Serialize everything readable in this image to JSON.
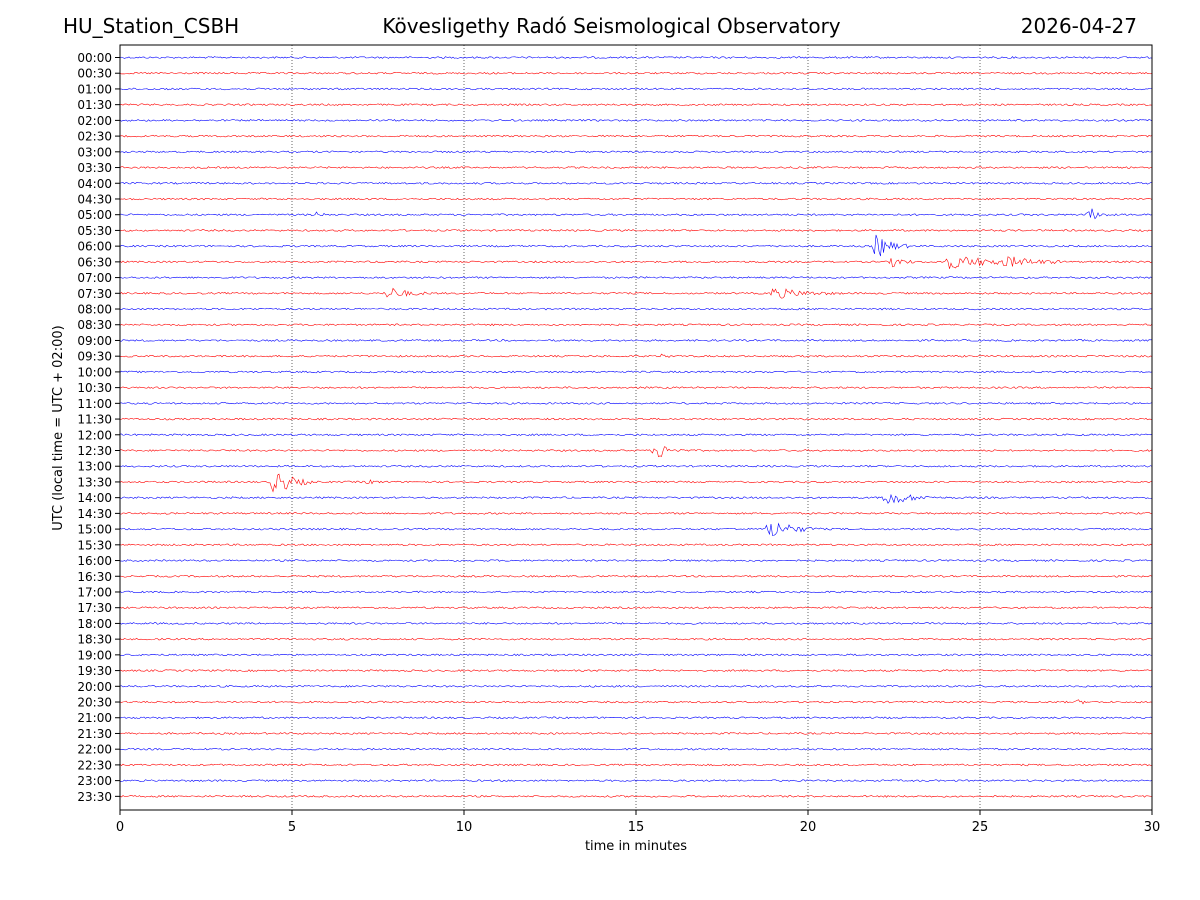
{
  "header": {
    "station": "HU_Station_CSBH",
    "title": "Kövesligethy Radó Seismological Observatory",
    "date": "2026-04-27"
  },
  "chart_data": {
    "type": "line",
    "title": "Kövesligethy Radó Seismological Observatory",
    "xlabel": "time in minutes",
    "ylabel": "UTC (local time = UTC + 02:00)",
    "xlim": [
      0,
      30
    ],
    "xticks": [
      0,
      5,
      10,
      15,
      20,
      25,
      30
    ],
    "grid": "vertical dotted at x ticks",
    "colors": [
      "#0000ff",
      "#ff0000"
    ],
    "rows": [
      "00:00",
      "00:30",
      "01:00",
      "01:30",
      "02:00",
      "02:30",
      "03:00",
      "03:30",
      "04:00",
      "04:30",
      "05:00",
      "05:30",
      "06:00",
      "06:30",
      "07:00",
      "07:30",
      "08:00",
      "08:30",
      "09:00",
      "09:30",
      "10:00",
      "10:30",
      "11:00",
      "11:30",
      "12:00",
      "12:30",
      "13:00",
      "13:30",
      "14:00",
      "14:30",
      "15:00",
      "15:30",
      "16:00",
      "16:30",
      "17:00",
      "17:30",
      "18:00",
      "18:30",
      "19:00",
      "19:30",
      "20:00",
      "20:30",
      "21:00",
      "21:30",
      "22:00",
      "22:30",
      "23:00",
      "23:30"
    ],
    "events": [
      {
        "row": "05:00",
        "minute": 28.2,
        "amplitude": 0.5,
        "duration": 0.6
      },
      {
        "row": "05:00",
        "minute": 5.7,
        "amplitude": 0.15,
        "duration": 0.5
      },
      {
        "row": "06:00",
        "minute": 22.0,
        "amplitude": 0.9,
        "duration": 1.0
      },
      {
        "row": "06:30",
        "minute": 22.5,
        "amplitude": 0.45,
        "duration": 0.6
      },
      {
        "row": "06:30",
        "minute": 24.0,
        "amplitude": 0.5,
        "duration": 3.5
      },
      {
        "row": "06:30",
        "minute": 25.8,
        "amplitude": 0.3,
        "duration": 1.5
      },
      {
        "row": "07:30",
        "minute": 7.8,
        "amplitude": 0.45,
        "duration": 1.3
      },
      {
        "row": "07:30",
        "minute": 19.0,
        "amplitude": 0.4,
        "duration": 2.0
      },
      {
        "row": "09:30",
        "minute": 15.8,
        "amplitude": 0.15,
        "duration": 0.3
      },
      {
        "row": "12:30",
        "minute": 15.6,
        "amplitude": 0.7,
        "duration": 0.8
      },
      {
        "row": "13:30",
        "minute": 4.5,
        "amplitude": 1.0,
        "duration": 1.2
      },
      {
        "row": "13:30",
        "minute": 7.2,
        "amplitude": 0.15,
        "duration": 0.5
      },
      {
        "row": "14:00",
        "minute": 22.3,
        "amplitude": 0.6,
        "duration": 1.5
      },
      {
        "row": "15:00",
        "minute": 18.9,
        "amplitude": 0.75,
        "duration": 1.5
      },
      {
        "row": "20:30",
        "minute": 27.9,
        "amplitude": 0.15,
        "duration": 0.3
      }
    ]
  }
}
